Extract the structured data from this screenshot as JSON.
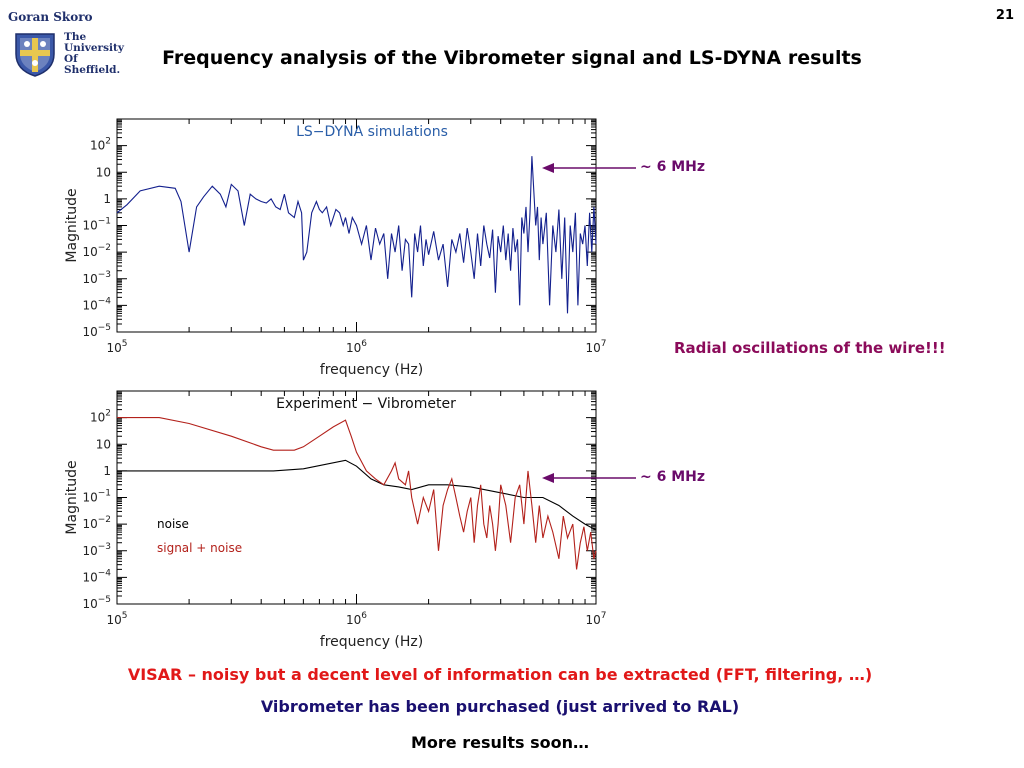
{
  "slide": {
    "author": "Goran Skoro",
    "university": [
      "The",
      "University",
      "Of",
      "Sheffield."
    ],
    "page_number": "21",
    "title": "Frequency analysis of the Vibrometer signal and LS-DYNA results",
    "annotation_top": "~ 6 MHz",
    "annotation_bottom": "~ 6 MHz",
    "radial_note": "Radial oscillations of the wire!!!",
    "line1": "VISAR – noisy but a decent level of information can be extracted (FFT, filtering, …)",
    "line2": "Vibrometer has been purchased (just arrived to RAL)",
    "line3": "More results soon…"
  },
  "colors": {
    "author": "#1f2f6b",
    "annotation": "#6a0b6a",
    "radial": "#8b0b5a",
    "line1": "#e11818",
    "line2": "#1a1070",
    "ls_dyna_series": "#13208e",
    "noise_series": "#000000",
    "signal_series": "#b3211b"
  },
  "chart_data": [
    {
      "type": "line",
      "title": "LS−DYNA simulations",
      "xlabel": "frequency (Hz)",
      "ylabel": "Magnitude",
      "xscale": "log",
      "yscale": "log",
      "xlim": [
        100000,
        10000000
      ],
      "ylim": [
        1e-05,
        1000
      ],
      "x_ticks": [
        "10^5",
        "10^6",
        "10^7"
      ],
      "y_ticks": [
        "10^2",
        "10",
        "1",
        "10^-1",
        "10^-2",
        "10^-3",
        "10^-4",
        "10^-5"
      ],
      "legend": [],
      "series": [
        {
          "color": "#13208e",
          "x": [
            100000,
            110000,
            125000,
            150000,
            175000,
            185000,
            200000,
            215000,
            230000,
            250000,
            270000,
            285000,
            300000,
            320000,
            340000,
            360000,
            380000,
            400000,
            420000,
            440000,
            460000,
            480000,
            500000,
            520000,
            550000,
            570000,
            590000,
            600000,
            620000,
            650000,
            680000,
            700000,
            720000,
            750000,
            780000,
            800000,
            820000,
            850000,
            880000,
            900000,
            930000,
            960000,
            1000000,
            1050000,
            1100000,
            1150000,
            1200000,
            1250000,
            1300000,
            1350000,
            1400000,
            1450000,
            1500000,
            1550000,
            1600000,
            1650000,
            1700000,
            1750000,
            1800000,
            1850000,
            1900000,
            1950000,
            2000000,
            2100000,
            2200000,
            2300000,
            2400000,
            2500000,
            2600000,
            2700000,
            2800000,
            2900000,
            3000000,
            3100000,
            3200000,
            3300000,
            3400000,
            3500000,
            3600000,
            3700000,
            3800000,
            3900000,
            4000000,
            4100000,
            4200000,
            4300000,
            4400000,
            4500000,
            4600000,
            4700000,
            4800000,
            4900000,
            5000000,
            5100000,
            5200000,
            5300000,
            5400000,
            5500000,
            5600000,
            5700000,
            5800000,
            5900000,
            6000000,
            6200000,
            6400000,
            6600000,
            6800000,
            7000000,
            7200000,
            7400000,
            7600000,
            7800000,
            8000000,
            8200000,
            8400000,
            8600000,
            8800000,
            9000000,
            9200000,
            9400000,
            9600000,
            9800000,
            10000000
          ],
          "values": [
            0.3,
            0.6,
            2.0,
            3.0,
            2.5,
            0.8,
            0.01,
            0.5,
            1.2,
            3.0,
            1.5,
            0.5,
            3.5,
            2.0,
            0.1,
            1.5,
            1.0,
            0.8,
            0.7,
            1.0,
            0.5,
            0.4,
            1.5,
            0.3,
            0.2,
            0.8,
            0.3,
            0.005,
            0.01,
            0.3,
            0.8,
            0.4,
            0.3,
            0.5,
            0.1,
            0.2,
            0.4,
            0.3,
            0.1,
            0.2,
            0.05,
            0.2,
            0.1,
            0.02,
            0.1,
            0.005,
            0.08,
            0.02,
            0.05,
            0.001,
            0.05,
            0.01,
            0.1,
            0.002,
            0.03,
            0.02,
            0.0002,
            0.05,
            0.01,
            0.1,
            0.003,
            0.03,
            0.008,
            0.06,
            0.005,
            0.02,
            0.0005,
            0.03,
            0.01,
            0.05,
            0.004,
            0.08,
            0.01,
            0.001,
            0.05,
            0.003,
            0.1,
            0.02,
            0.006,
            0.07,
            0.0003,
            0.04,
            0.01,
            0.1,
            0.005,
            0.05,
            0.002,
            0.08,
            0.01,
            0.03,
            0.0001,
            0.2,
            0.05,
            0.5,
            0.01,
            0.3,
            40.0,
            2.0,
            0.1,
            0.5,
            0.005,
            0.2,
            0.02,
            0.3,
            0.0001,
            0.1,
            0.01,
            0.4,
            0.001,
            0.2,
            5e-05,
            0.1,
            0.01,
            0.3,
            0.0001,
            0.05,
            0.02,
            0.1,
            0.003,
            0.3,
            0.01,
            0.5,
            0.02
          ]
        }
      ]
    },
    {
      "type": "line",
      "title": "Experiment − Vibrometer",
      "xlabel": "frequency (Hz)",
      "ylabel": "Magnitude",
      "xscale": "log",
      "yscale": "log",
      "xlim": [
        100000,
        10000000
      ],
      "ylim": [
        1e-05,
        1000
      ],
      "x_ticks": [
        "10^5",
        "10^6",
        "10^7"
      ],
      "y_ticks": [
        "10^2",
        "10",
        "1",
        "10^-1",
        "10^-2",
        "10^-3",
        "10^-4",
        "10^-5"
      ],
      "legend": [
        "noise",
        "signal + noise"
      ],
      "legend_position": "left-middle",
      "series": [
        {
          "name": "noise",
          "color": "#000000",
          "x": [
            100000,
            200000,
            300000,
            450000,
            600000,
            900000,
            1000000,
            1150000,
            1300000,
            1500000,
            1700000,
            2000000,
            2400000,
            3000000,
            4000000,
            5000000,
            6000000,
            7000000,
            8000000,
            9000000,
            10000000
          ],
          "values": [
            1.0,
            1.0,
            1.0,
            1.0,
            1.2,
            2.5,
            1.5,
            0.5,
            0.3,
            0.25,
            0.2,
            0.3,
            0.3,
            0.25,
            0.15,
            0.1,
            0.1,
            0.05,
            0.02,
            0.01,
            0.006
          ]
        },
        {
          "name": "signal + noise",
          "color": "#b3211b",
          "x": [
            100000,
            150000,
            200000,
            300000,
            400000,
            450000,
            550000,
            600000,
            700000,
            800000,
            900000,
            950000,
            1000000,
            1100000,
            1200000,
            1300000,
            1400000,
            1450000,
            1500000,
            1600000,
            1650000,
            1700000,
            1800000,
            1900000,
            2000000,
            2100000,
            2200000,
            2300000,
            2400000,
            2500000,
            2600000,
            2700000,
            2800000,
            2900000,
            3000000,
            3100000,
            3200000,
            3300000,
            3400000,
            3500000,
            3600000,
            3700000,
            3800000,
            3900000,
            4000000,
            4200000,
            4400000,
            4600000,
            4800000,
            5000000,
            5200000,
            5400000,
            5600000,
            5800000,
            6000000,
            6300000,
            6600000,
            7000000,
            7300000,
            7600000,
            8000000,
            8300000,
            8600000,
            8900000,
            9200000,
            9500000,
            9800000,
            10000000
          ],
          "values": [
            100.0,
            100.0,
            60.0,
            20.0,
            8.0,
            6.0,
            6.0,
            8.0,
            20.0,
            45.0,
            80.0,
            20.0,
            5.0,
            1.0,
            0.5,
            0.3,
            1.0,
            2.0,
            0.5,
            0.3,
            1.0,
            0.1,
            0.01,
            0.1,
            0.03,
            0.2,
            0.001,
            0.05,
            0.2,
            0.5,
            0.1,
            0.02,
            0.005,
            0.03,
            0.1,
            0.002,
            0.05,
            0.3,
            0.01,
            0.003,
            0.05,
            0.01,
            0.001,
            0.01,
            0.3,
            0.05,
            0.002,
            0.1,
            0.3,
            0.01,
            1.0,
            0.05,
            0.002,
            0.05,
            0.003,
            0.02,
            0.005,
            0.0005,
            0.02,
            0.003,
            0.01,
            0.0002,
            0.002,
            0.008,
            0.001,
            0.005,
            0.0005,
            0.001
          ]
        }
      ]
    }
  ]
}
